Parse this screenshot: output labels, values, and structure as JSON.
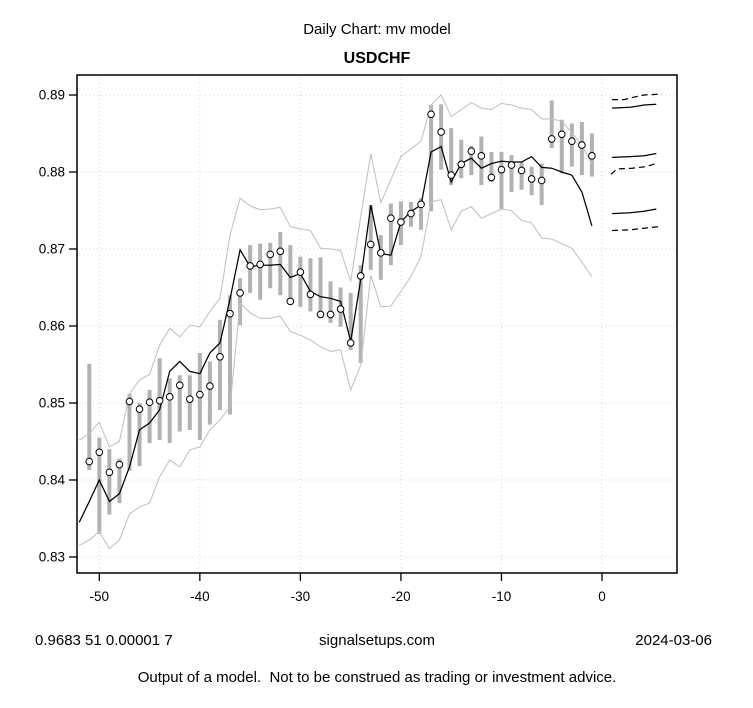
{
  "header": {
    "title": "Daily Chart: mv model",
    "symbol": "USDCHF"
  },
  "footer": {
    "left_stats": "0.9683 51 0.00001 7",
    "site": "signalsetups.com",
    "date": "2024-03-06",
    "disclaimer": "Output of a model.  Not to be construed as trading or investment advice."
  },
  "colors": {
    "background": "#ffffff",
    "bar": "#b2b2b2",
    "envelope": "#c3c3c3",
    "model_line": "#000000",
    "forecast_line": "#000000",
    "grid": "#d6d6d6",
    "axis": "#000000",
    "marker_fill": "#ffffff",
    "marker_stroke": "#000000"
  },
  "chart_data": {
    "type": "line",
    "title": "USDCHF",
    "xlabel": "",
    "ylabel": "",
    "xlim": [
      -52.22,
      7.46
    ],
    "ylim": [
      0.82792,
      0.8926
    ],
    "x_ticks": [
      -50,
      -40,
      -30,
      -20,
      -10,
      0
    ],
    "y_ticks": [
      0.83,
      0.84,
      0.85,
      0.86,
      0.87,
      0.88,
      0.89
    ],
    "grid": true,
    "legend": "none",
    "days": [
      -51,
      -50,
      -49,
      -48,
      -47,
      -46,
      -45,
      -44,
      -43,
      -42,
      -41,
      -40,
      -39,
      -38,
      -37,
      -36,
      -35,
      -34,
      -33,
      -32,
      -31,
      -30,
      -29,
      -28,
      -27,
      -26,
      -25,
      -24,
      -23,
      -22,
      -21,
      -20,
      -19,
      -18,
      -17,
      -16,
      -15,
      -14,
      -13,
      -12,
      -11,
      -10,
      -9,
      -8,
      -7,
      -6,
      -5,
      -4,
      -3,
      -2,
      -1
    ],
    "price_high": [
      0.8551,
      0.8455,
      0.844,
      0.8428,
      0.8512,
      0.85,
      0.8517,
      0.8558,
      0.8532,
      0.8536,
      0.8536,
      0.8565,
      0.8554,
      0.8608,
      0.864,
      0.8662,
      0.8705,
      0.8707,
      0.8708,
      0.8722,
      0.8705,
      0.869,
      0.8688,
      0.8689,
      0.8658,
      0.865,
      0.8643,
      0.8679,
      0.8757,
      0.8718,
      0.8759,
      0.8762,
      0.8761,
      0.8766,
      0.8887,
      0.8888,
      0.8857,
      0.8842,
      0.8834,
      0.8846,
      0.8826,
      0.8826,
      0.8822,
      0.8813,
      0.8807,
      0.8811,
      0.8893,
      0.8868,
      0.8863,
      0.8865,
      0.885
    ],
    "price_low": [
      0.8413,
      0.833,
      0.8355,
      0.837,
      0.8412,
      0.8418,
      0.8448,
      0.8452,
      0.8448,
      0.8463,
      0.8465,
      0.8452,
      0.8472,
      0.8491,
      0.8485,
      0.8601,
      0.8643,
      0.8634,
      0.8649,
      0.864,
      0.8627,
      0.8625,
      0.8619,
      0.8617,
      0.8604,
      0.8599,
      0.8569,
      0.8552,
      0.8673,
      0.866,
      0.8679,
      0.8705,
      0.8729,
      0.8725,
      0.8749,
      0.8803,
      0.8783,
      0.8792,
      0.8796,
      0.8783,
      0.8787,
      0.8751,
      0.8774,
      0.8777,
      0.877,
      0.8757,
      0.8831,
      0.8798,
      0.8807,
      0.8796,
      0.8794
    ],
    "price_close": [
      0.8424,
      0.8436,
      0.841,
      0.842,
      0.8502,
      0.8492,
      0.8501,
      0.8503,
      0.8508,
      0.8523,
      0.8505,
      0.8511,
      0.8522,
      0.856,
      0.8616,
      0.8643,
      0.8678,
      0.868,
      0.8693,
      0.8697,
      0.8632,
      0.867,
      0.8641,
      0.8615,
      0.8615,
      0.8622,
      0.8578,
      0.8665,
      0.8706,
      0.8695,
      0.874,
      0.8735,
      0.8746,
      0.8758,
      0.8875,
      0.8852,
      0.8796,
      0.881,
      0.8827,
      0.8821,
      0.8793,
      0.8803,
      0.8809,
      0.8802,
      0.8791,
      0.8789,
      0.8843,
      0.8849,
      0.884,
      0.8835,
      0.8821
    ],
    "model_x": [
      -52,
      -51,
      -50,
      -49,
      -48,
      -47,
      -46,
      -45,
      -44,
      -43,
      -42,
      -41,
      -40,
      -39,
      -38,
      -37,
      -36,
      -35,
      -34,
      -33,
      -32,
      -31,
      -30,
      -29,
      -28,
      -27,
      -26,
      -25,
      -24,
      -23,
      -22,
      -21,
      -20,
      -19,
      -18,
      -17,
      -16,
      -15,
      -14,
      -13,
      -12,
      -11,
      -10,
      -9,
      -8,
      -7,
      -6,
      -5,
      -4,
      -3,
      -2,
      -1
    ],
    "model_line": [
      0.8345,
      0.8372,
      0.84,
      0.8372,
      0.8382,
      0.8417,
      0.8465,
      0.8474,
      0.8491,
      0.8541,
      0.8554,
      0.8541,
      0.8538,
      0.8565,
      0.8578,
      0.8635,
      0.8699,
      0.8677,
      0.8679,
      0.8679,
      0.868,
      0.8663,
      0.8668,
      0.8645,
      0.8638,
      0.8636,
      0.8632,
      0.858,
      0.866,
      0.8757,
      0.8694,
      0.8692,
      0.8735,
      0.8749,
      0.8757,
      0.8826,
      0.8833,
      0.8787,
      0.8811,
      0.8818,
      0.8805,
      0.8811,
      0.8814,
      0.8813,
      0.8813,
      0.882,
      0.8806,
      0.8805,
      0.88,
      0.8796,
      0.8774,
      0.873
    ],
    "band_upper": [
      0.8452,
      0.846,
      0.8475,
      0.8443,
      0.845,
      0.8512,
      0.853,
      0.8537,
      0.8575,
      0.8597,
      0.8586,
      0.8601,
      0.8599,
      0.8619,
      0.8636,
      0.8718,
      0.8766,
      0.8756,
      0.8751,
      0.8752,
      0.8754,
      0.8729,
      0.8726,
      0.8724,
      0.8701,
      0.87,
      0.8698,
      0.8658,
      0.8742,
      0.8824,
      0.876,
      0.879,
      0.882,
      0.883,
      0.884,
      0.8887,
      0.89,
      0.8872,
      0.8881,
      0.889,
      0.8883,
      0.8881,
      0.8889,
      0.8887,
      0.8883,
      0.8881,
      0.8869,
      0.8869,
      0.8866,
      0.8851,
      0.8835,
      0.881
    ],
    "band_lower": [
      0.8315,
      0.8322,
      0.8333,
      0.8311,
      0.8322,
      0.8356,
      0.8365,
      0.837,
      0.8404,
      0.8426,
      0.8417,
      0.8439,
      0.8443,
      0.8465,
      0.8478,
      0.8495,
      0.863,
      0.8617,
      0.861,
      0.861,
      0.8613,
      0.8593,
      0.8588,
      0.8582,
      0.8573,
      0.8567,
      0.8569,
      0.8517,
      0.8549,
      0.8666,
      0.8625,
      0.8626,
      0.8645,
      0.8665,
      0.869,
      0.8761,
      0.8764,
      0.8725,
      0.8749,
      0.8755,
      0.874,
      0.8746,
      0.8752,
      0.875,
      0.8737,
      0.8734,
      0.8714,
      0.8713,
      0.8707,
      0.8701,
      0.8683,
      0.8664
    ],
    "forecast": [
      {
        "name": "upper-band-forecast-dashed",
        "style": "dashed",
        "x": [
          1.0,
          2.2,
          3.1,
          4.2,
          5.6
        ],
        "y": [
          0.8894,
          0.8894,
          0.8897,
          0.89,
          0.8901
        ]
      },
      {
        "name": "upper-band-forecast-solid",
        "style": "solid",
        "x": [
          1.0,
          2.8,
          4.2,
          5.4
        ],
        "y": [
          0.8883,
          0.8884,
          0.8887,
          0.8888
        ]
      },
      {
        "name": "mid-forecast-solid",
        "style": "solid",
        "x": [
          1.0,
          2.8,
          4.2,
          5.4
        ],
        "y": [
          0.8819,
          0.882,
          0.8821,
          0.8824
        ]
      },
      {
        "name": "mid-forecast-dashed",
        "style": "dashed",
        "x": [
          0.9,
          1.5,
          3.0,
          4.4,
          5.4
        ],
        "y": [
          0.8797,
          0.8804,
          0.8805,
          0.8807,
          0.8811
        ]
      },
      {
        "name": "lower-band-forecast-solid",
        "style": "solid",
        "x": [
          1.0,
          2.8,
          4.2,
          5.4
        ],
        "y": [
          0.8746,
          0.8747,
          0.8749,
          0.8752
        ]
      },
      {
        "name": "lower-band-forecast-dashed",
        "style": "dashed",
        "x": [
          1.0,
          2.8,
          4.2,
          5.6
        ],
        "y": [
          0.8724,
          0.8725,
          0.8727,
          0.8729
        ]
      }
    ]
  }
}
